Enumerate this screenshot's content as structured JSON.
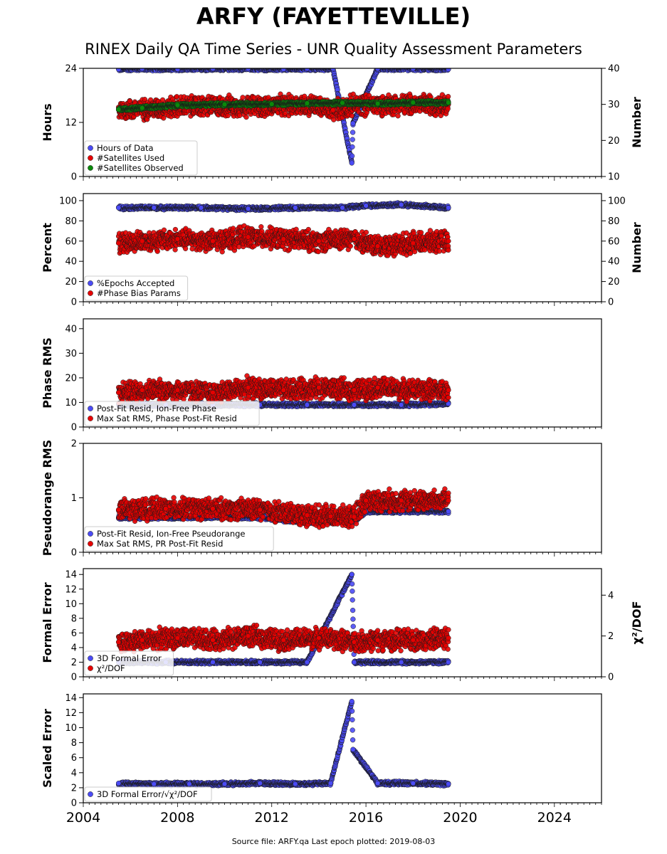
{
  "title": "ARFY (FAYETTEVILLE)",
  "subtitle": "RINEX Daily QA Time Series - UNR Quality Assessment Parameters",
  "source": "Source file: ARFY.qa Last epoch plotted: 2019-08-03",
  "chart_data": [
    {
      "type": "scatter",
      "ylabel": "Hours",
      "ylim": [
        0,
        24
      ],
      "yticks": [
        0,
        12,
        24
      ],
      "y2label": "Number",
      "y2lim": [
        10,
        40
      ],
      "y2ticks": [
        10,
        20,
        30,
        40
      ],
      "xlim": [
        2004,
        2026
      ],
      "legend": "bottom-left",
      "series": [
        {
          "name": "Hours of Data",
          "color": "#4b4bf5",
          "axis": "left",
          "x": [
            2005.5,
            2006.5,
            2008,
            2009.5,
            2011,
            2012.5,
            2013.5,
            2014.6,
            2015.4,
            2015.45,
            2016.5,
            2018,
            2019.5
          ],
          "y": [
            23.8,
            23.9,
            23.8,
            23.9,
            23.9,
            23.8,
            23.9,
            23.9,
            3,
            11.8,
            23.9,
            23.9,
            23.8
          ]
        },
        {
          "name": "#Satellites Used",
          "color": "#e60000",
          "axis": "right",
          "x": [
            2005.5,
            2006.5,
            2008,
            2010,
            2012,
            2013.5,
            2014.6,
            2015.5,
            2017,
            2018.5,
            2019.5
          ],
          "y": [
            28.5,
            28.6,
            29.4,
            29.5,
            29.5,
            30.0,
            28.4,
            29.8,
            30.0,
            30.0,
            30.0
          ]
        },
        {
          "name": "#Satellites Observed",
          "color": "#0a8a0a",
          "axis": "right",
          "x": [
            2005.5,
            2006.5,
            2008,
            2010,
            2012,
            2013.5,
            2015,
            2016.5,
            2018,
            2019.5
          ],
          "y": [
            28.6,
            29.0,
            29.8,
            30.0,
            30.1,
            30.3,
            30.4,
            30.2,
            30.5,
            30.5
          ]
        }
      ]
    },
    {
      "type": "scatter",
      "ylabel": "Percent",
      "ylim": [
        0,
        107
      ],
      "yticks": [
        0,
        20,
        40,
        60,
        80,
        100
      ],
      "y2label": "Number",
      "y2lim": [
        0,
        107
      ],
      "y2ticks": [
        0,
        20,
        40,
        60,
        80,
        100
      ],
      "xlim": [
        2004,
        2026
      ],
      "legend": "bottom-left",
      "series": [
        {
          "name": "%Epochs Accepted",
          "color": "#4b4bf5",
          "axis": "left",
          "x": [
            2005.5,
            2007,
            2009,
            2011,
            2013,
            2015,
            2016,
            2017.5,
            2019.5
          ],
          "y": [
            93,
            93,
            93,
            92,
            93,
            93,
            95,
            96,
            93
          ]
        },
        {
          "name": "#Phase Bias Params",
          "color": "#e60000",
          "axis": "right",
          "x": [
            2005.5,
            2006.5,
            2008,
            2009.5,
            2011,
            2012.5,
            2014,
            2015.5,
            2016.5,
            2018,
            2019.5
          ],
          "y": [
            58,
            60,
            62,
            60,
            64,
            62,
            60,
            62,
            55,
            58,
            60
          ]
        }
      ]
    },
    {
      "type": "scatter",
      "ylabel": "Phase RMS",
      "ylim": [
        0,
        44
      ],
      "yticks": [
        0,
        10,
        20,
        30,
        40
      ],
      "xlim": [
        2004,
        2026
      ],
      "legend": "bottom-left",
      "series": [
        {
          "name": "Post-Fit Resid, Ion-Free Phase",
          "color": "#4b4bf5",
          "axis": "left",
          "x": [
            2005.5,
            2007.5,
            2009.5,
            2011.5,
            2013.5,
            2015.5,
            2017.5,
            2019.5
          ],
          "y": [
            9,
            9,
            9,
            9,
            9,
            9,
            9,
            9.5
          ]
        },
        {
          "name": "Max Sat RMS, Phase Post-Fit Resid",
          "color": "#e60000",
          "axis": "left",
          "x": [
            2005.5,
            2006.5,
            2008,
            2009.5,
            2011,
            2012.5,
            2014,
            2015.5,
            2016.5,
            2018,
            2019.5
          ],
          "y": [
            14,
            15,
            15,
            14,
            16,
            15,
            16,
            15,
            16,
            15,
            15
          ]
        }
      ]
    },
    {
      "type": "scatter",
      "ylabel": "Pseudorange RMS",
      "ylim": [
        0,
        2
      ],
      "yticks": [
        0,
        1,
        2
      ],
      "xlim": [
        2004,
        2026
      ],
      "legend": "bottom-left",
      "series": [
        {
          "name": "Post-Fit Resid, Ion-Free Pseudorange",
          "color": "#4b4bf5",
          "axis": "left",
          "x": [
            2005.5,
            2007.5,
            2009.5,
            2011.5,
            2013.5,
            2014.5,
            2015.5,
            2016,
            2017.5,
            2019.5
          ],
          "y": [
            0.64,
            0.64,
            0.65,
            0.64,
            0.55,
            0.56,
            0.58,
            0.75,
            0.75,
            0.75
          ]
        },
        {
          "name": "Max Sat RMS, PR Post-Fit Resid",
          "color": "#e60000",
          "axis": "left",
          "x": [
            2005.5,
            2007.5,
            2009.5,
            2011.5,
            2013.5,
            2014.5,
            2015.5,
            2016,
            2017.5,
            2019.5
          ],
          "y": [
            0.78,
            0.8,
            0.8,
            0.78,
            0.68,
            0.66,
            0.65,
            0.95,
            0.95,
            0.95
          ]
        }
      ]
    },
    {
      "type": "scatter",
      "ylabel": "Formal Error",
      "ylim": [
        0,
        14.8
      ],
      "yticks": [
        0,
        2,
        4,
        6,
        8,
        10,
        12,
        14
      ],
      "y2label": "χ²/DOF",
      "y2lim": [
        0,
        5.3
      ],
      "y2ticks": [
        0,
        2,
        4
      ],
      "xlim": [
        2004,
        2026
      ],
      "legend": "bottom-left",
      "series": [
        {
          "name": "3D Formal Error",
          "color": "#4b4bf5",
          "axis": "left",
          "x": [
            2005.5,
            2007.5,
            2009.5,
            2011.5,
            2013.5,
            2015.4,
            2015.5,
            2017.5,
            2019.5
          ],
          "y": [
            2,
            2,
            2,
            2,
            2,
            14,
            2,
            2,
            2
          ]
        },
        {
          "name": "χ²/DOF",
          "color": "#e60000",
          "axis": "right",
          "x": [
            2005.5,
            2006.5,
            2008,
            2009.5,
            2011,
            2012.5,
            2014,
            2015.5,
            2016.5,
            2018,
            2019.5
          ],
          "y": [
            1.7,
            1.8,
            1.9,
            1.8,
            2.0,
            1.8,
            1.9,
            1.7,
            1.8,
            1.8,
            1.9
          ]
        }
      ]
    },
    {
      "type": "scatter",
      "ylabel": "Scaled Error",
      "ylim": [
        0,
        14.5
      ],
      "yticks": [
        0,
        2,
        4,
        6,
        8,
        10,
        12,
        14
      ],
      "xlim": [
        2004,
        2026
      ],
      "xticks": [
        2004,
        2008,
        2012,
        2016,
        2020,
        2024
      ],
      "legend": "bottom-left",
      "series": [
        {
          "name": "3D Formal Error/√χ²/DOF",
          "color": "#4b4bf5",
          "axis": "left",
          "x": [
            2005.5,
            2007,
            2008.5,
            2010,
            2011.5,
            2013,
            2014.5,
            2015.4,
            2015.45,
            2016.5,
            2018,
            2019.5
          ],
          "y": [
            2.6,
            2.5,
            2.5,
            2.5,
            2.6,
            2.5,
            2.6,
            13.5,
            7.1,
            2.6,
            2.6,
            2.5
          ]
        }
      ]
    }
  ]
}
